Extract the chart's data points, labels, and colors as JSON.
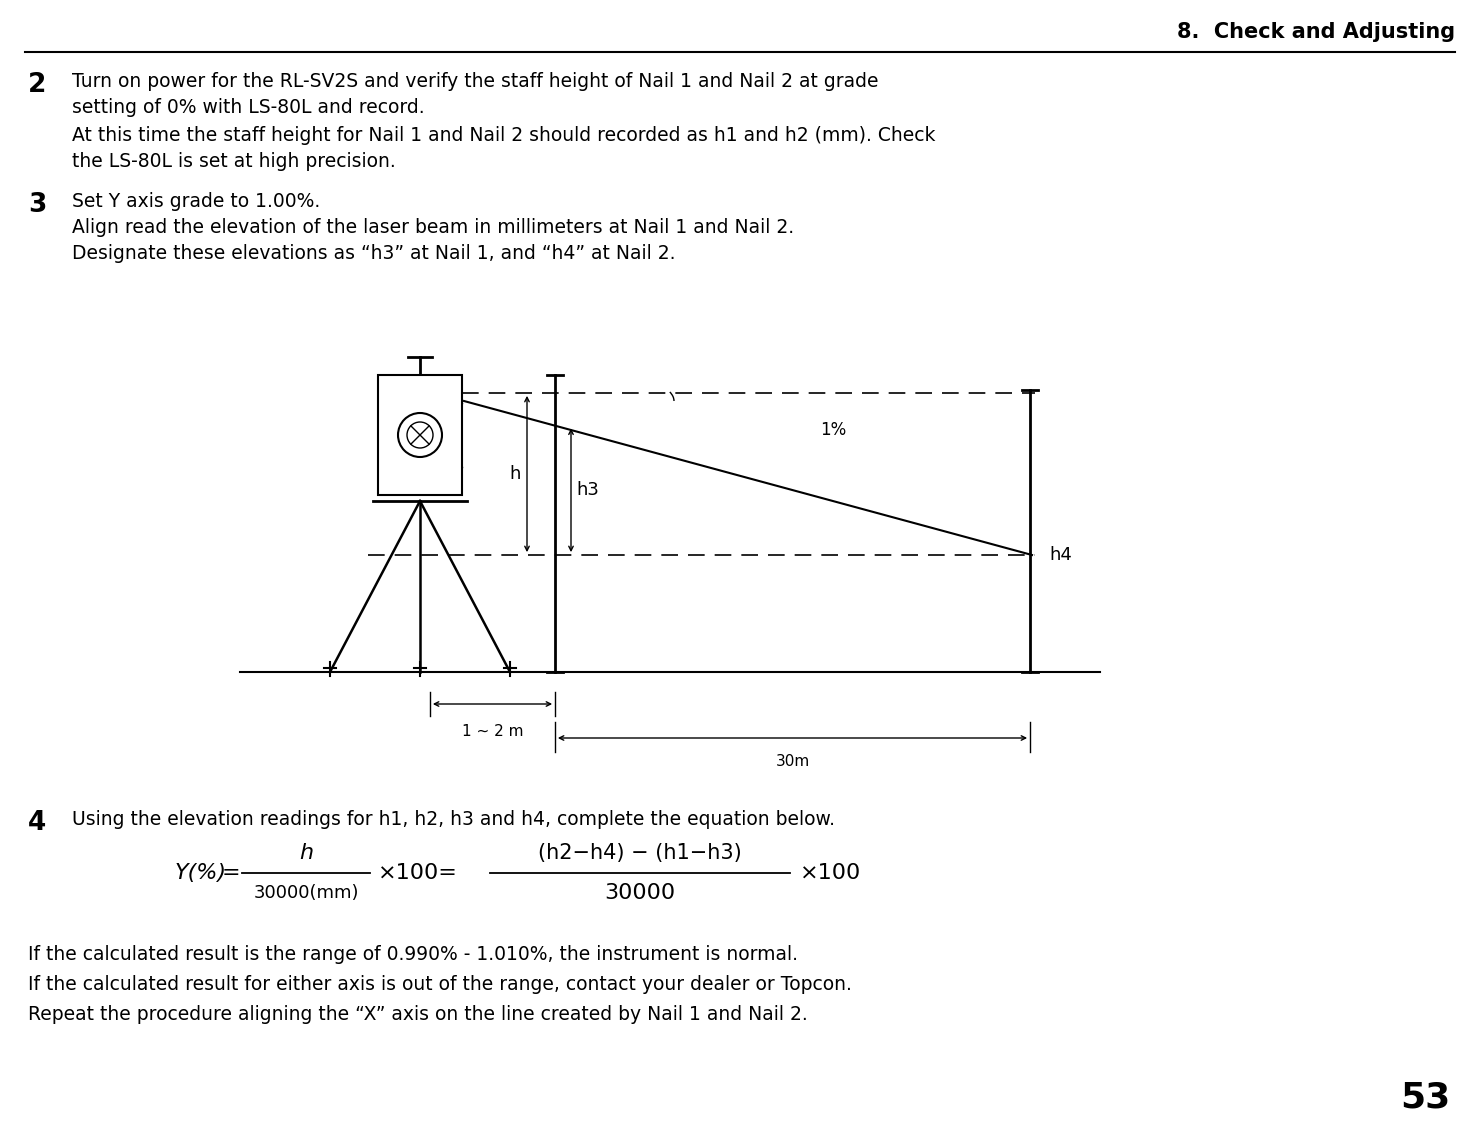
{
  "title": "8.  Check and Adjusting",
  "page_number": "53",
  "step2_number": "2",
  "step2_text_line1": "Turn on power for the RL-SV2S and verify the staff height of Nail 1 and Nail 2 at grade",
  "step2_text_line2": "setting of 0% with LS-80L and record.",
  "step2_text_line3": "At this time the staff height for Nail 1 and Nail 2 should recorded as h1 and h2 (mm). Check",
  "step2_text_line4": "the LS-80L is set at high precision.",
  "step3_number": "3",
  "step3_text_line1": "Set Y axis grade to 1.00%.",
  "step3_text_line2": "Align read the elevation of the laser beam in millimeters at Nail 1 and Nail 2.",
  "step3_text_line3": "Designate these elevations as “h3” at Nail 1, and “h4” at Nail 2.",
  "step4_number": "4",
  "step4_text": "Using the elevation readings for h1, h2, h3 and h4, complete the equation below.",
  "footer_line1": "If the calculated result is the range of 0.990% - 1.010%, the instrument is normal.",
  "footer_line2": "If the calculated result for either axis is out of the range, contact your dealer or Topcon.",
  "footer_line3": "Repeat the procedure aligning the “X” axis on the line created by Nail 1 and Nail 2.",
  "bg_color": "#ffffff",
  "text_color": "#000000"
}
